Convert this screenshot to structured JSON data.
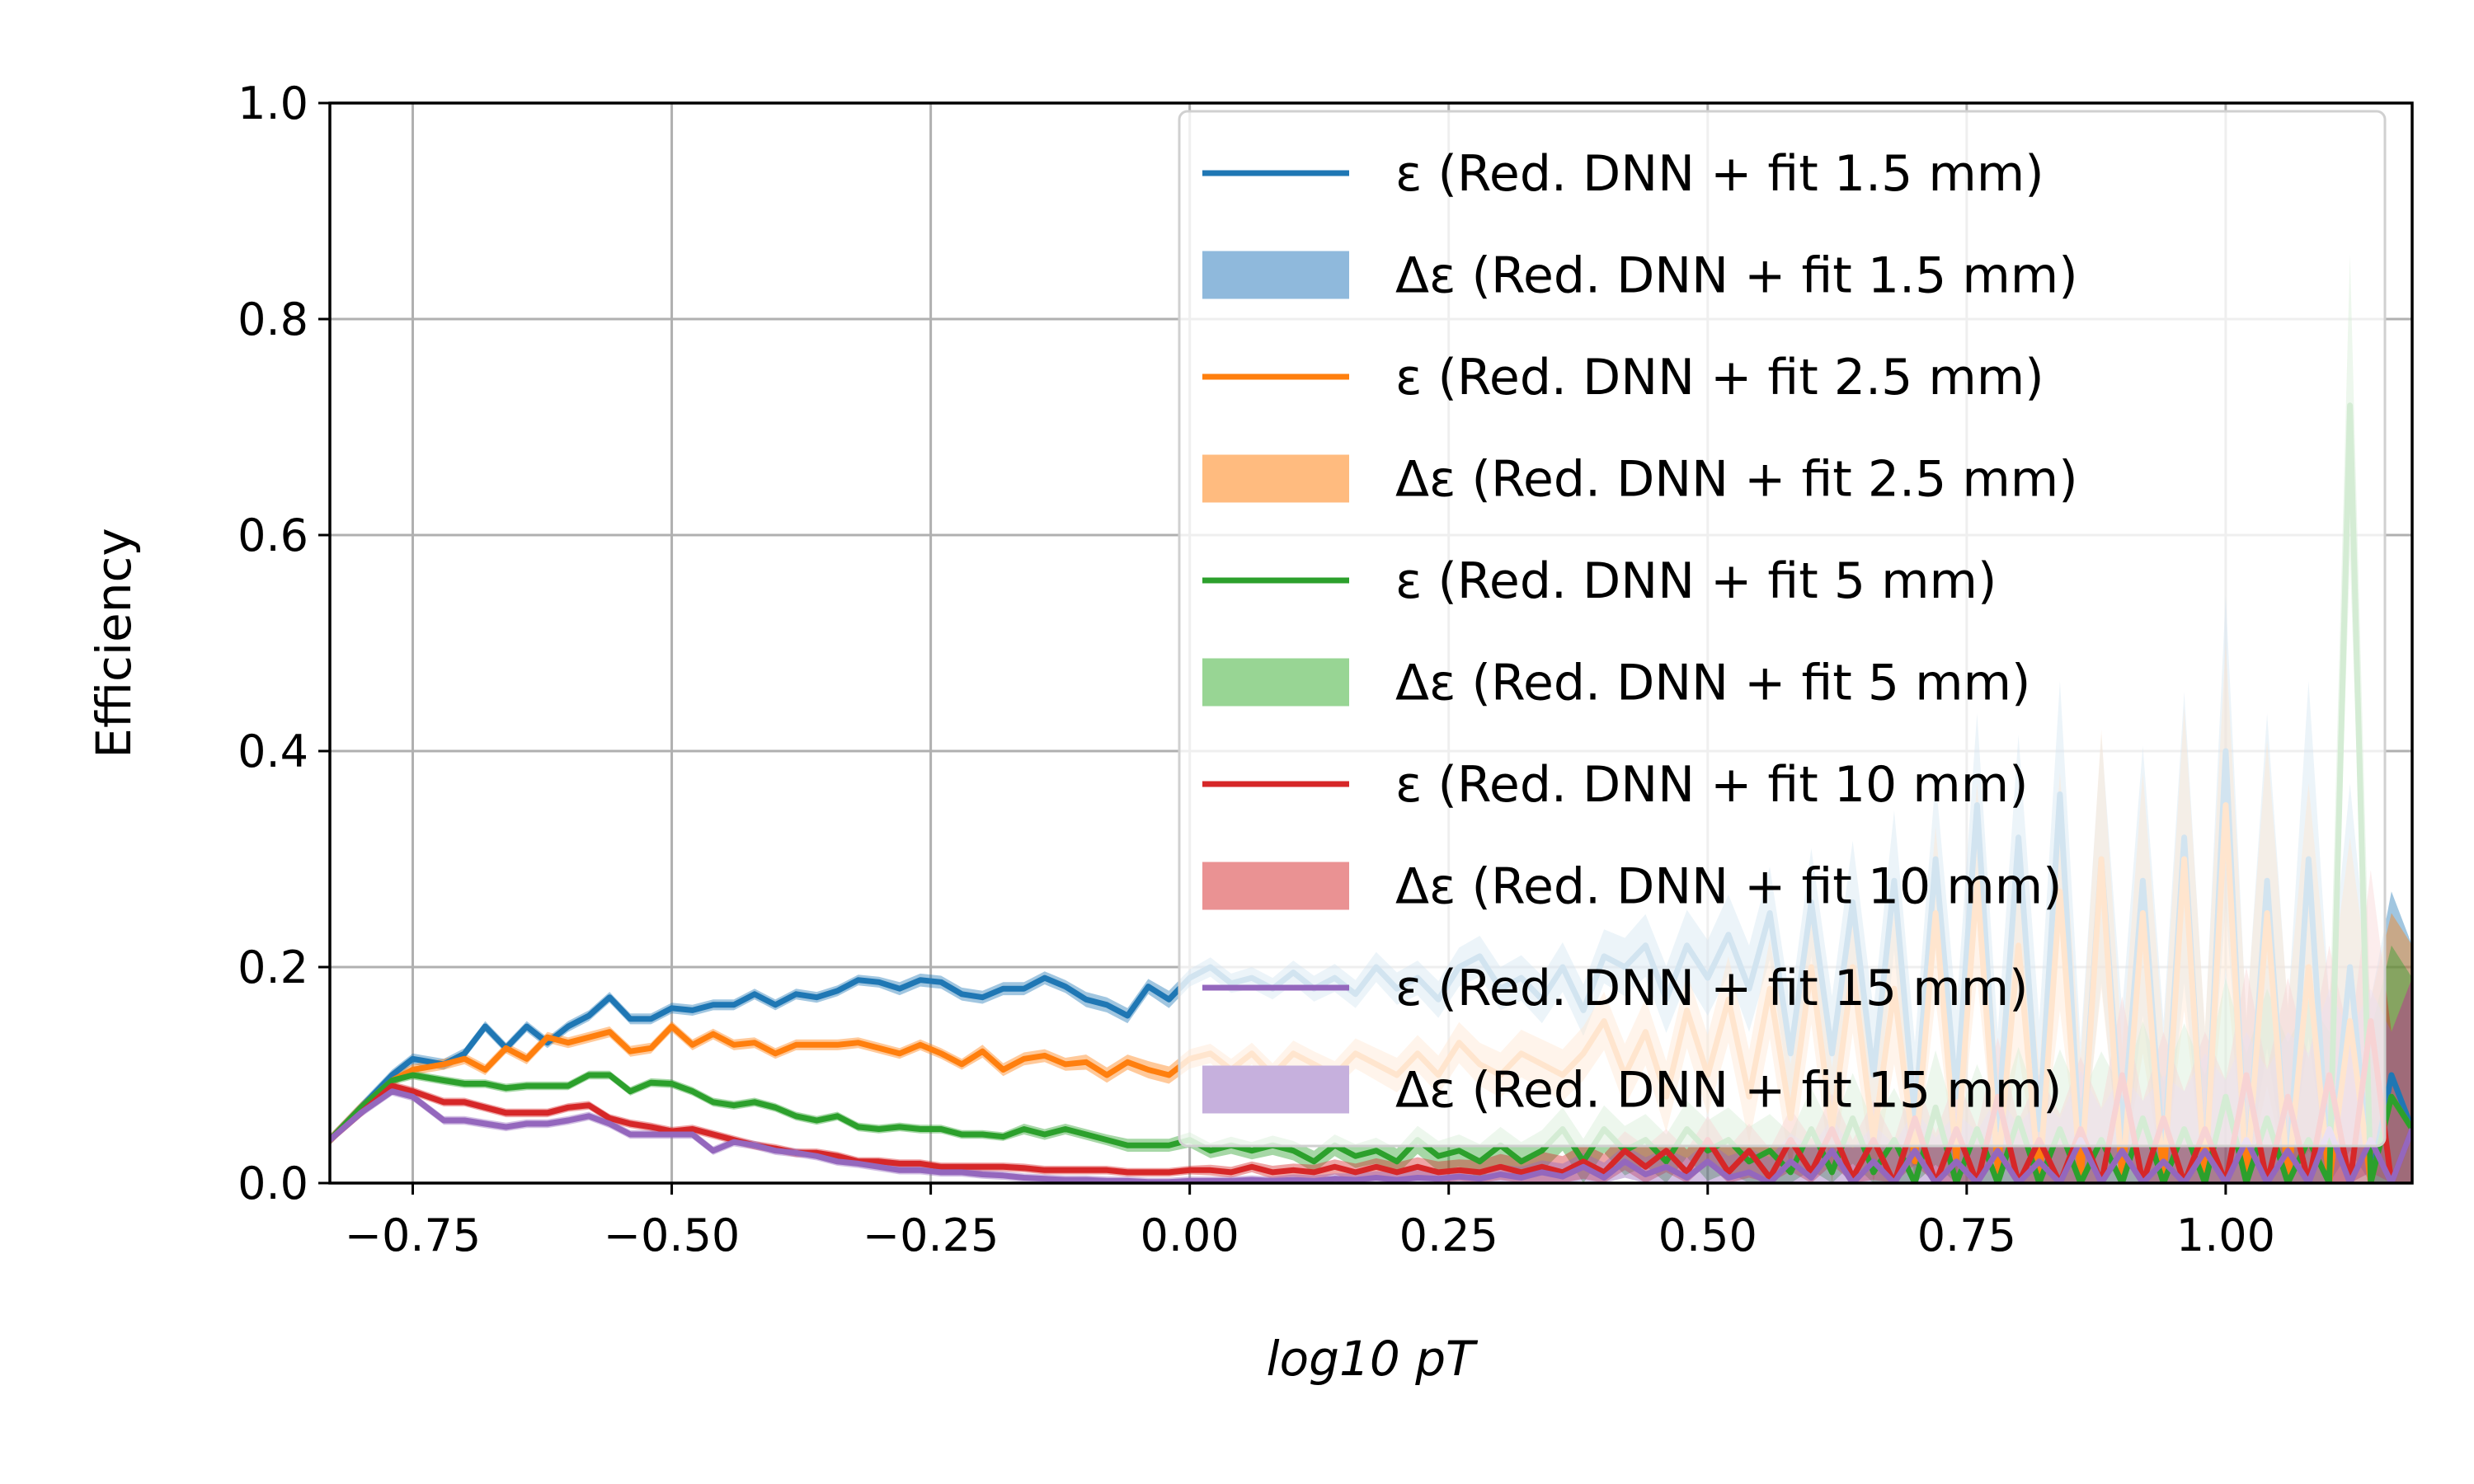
{
  "chart_data": {
    "type": "line",
    "title": "",
    "xlabel": "log10 pT",
    "ylabel": "Efficiency",
    "xlim": [
      -0.83,
      1.18
    ],
    "ylim": [
      0.0,
      1.0
    ],
    "x_ticks": [
      "−0.75",
      "−0.50",
      "−0.25",
      "0.00",
      "0.25",
      "0.50",
      "0.75",
      "1.00"
    ],
    "x_tick_values": [
      -0.75,
      -0.5,
      -0.25,
      0.0,
      0.25,
      0.5,
      0.75,
      1.0
    ],
    "y_ticks": [
      "0.0",
      "0.2",
      "0.4",
      "0.6",
      "0.8",
      "1.0"
    ],
    "y_tick_values": [
      0.0,
      0.2,
      0.4,
      0.6,
      0.8,
      1.0
    ],
    "grid": true,
    "legend_position": "top-right",
    "x": [
      -0.83,
      -0.8,
      -0.77,
      -0.75,
      -0.72,
      -0.7,
      -0.68,
      -0.66,
      -0.64,
      -0.62,
      -0.6,
      -0.58,
      -0.56,
      -0.54,
      -0.52,
      -0.5,
      -0.48,
      -0.46,
      -0.44,
      -0.42,
      -0.4,
      -0.38,
      -0.36,
      -0.34,
      -0.32,
      -0.3,
      -0.28,
      -0.26,
      -0.24,
      -0.22,
      -0.2,
      -0.18,
      -0.16,
      -0.14,
      -0.12,
      -0.1,
      -0.08,
      -0.06,
      -0.04,
      -0.02,
      0.0,
      0.02,
      0.04,
      0.06,
      0.08,
      0.1,
      0.12,
      0.14,
      0.16,
      0.18,
      0.2,
      0.22,
      0.24,
      0.26,
      0.28,
      0.3,
      0.32,
      0.34,
      0.36,
      0.38,
      0.4,
      0.42,
      0.44,
      0.46,
      0.48,
      0.5,
      0.52,
      0.54,
      0.56,
      0.58,
      0.6,
      0.62,
      0.64,
      0.66,
      0.68,
      0.7,
      0.72,
      0.74,
      0.76,
      0.78,
      0.8,
      0.82,
      0.84,
      0.86,
      0.88,
      0.9,
      0.92,
      0.94,
      0.96,
      0.98,
      1.0,
      1.02,
      1.04,
      1.06,
      1.08,
      1.1,
      1.12,
      1.14,
      1.16,
      1.18
    ],
    "series": [
      {
        "name": "ε (Red. DNN + fit 1.5 mm)",
        "band_name": "Δε (Red. DNN + fit 1.5 mm)",
        "color": "#1f77b4",
        "band_color": "#8fb9dc",
        "values": [
          0.04,
          0.07,
          0.1,
          0.115,
          0.11,
          0.12,
          0.145,
          0.125,
          0.145,
          0.13,
          0.145,
          0.155,
          0.172,
          0.152,
          0.152,
          0.162,
          0.16,
          0.165,
          0.165,
          0.175,
          0.165,
          0.175,
          0.172,
          0.178,
          0.188,
          0.186,
          0.18,
          0.188,
          0.186,
          0.175,
          0.172,
          0.18,
          0.18,
          0.19,
          0.182,
          0.17,
          0.165,
          0.155,
          0.182,
          0.17,
          0.19,
          0.2,
          0.185,
          0.19,
          0.18,
          0.195,
          0.18,
          0.19,
          0.175,
          0.2,
          0.18,
          0.19,
          0.17,
          0.2,
          0.21,
          0.18,
          0.19,
          0.17,
          0.2,
          0.16,
          0.21,
          0.2,
          0.22,
          0.17,
          0.22,
          0.19,
          0.23,
          0.18,
          0.25,
          0.12,
          0.26,
          0.12,
          0.26,
          0.1,
          0.28,
          0.06,
          0.3,
          0.08,
          0.35,
          0.05,
          0.32,
          0.05,
          0.36,
          0.02,
          0.3,
          0.04,
          0.28,
          0.02,
          0.32,
          0.0,
          0.4,
          0.0,
          0.28,
          0.0,
          0.3,
          0.0,
          0.2,
          0.0,
          0.1,
          0.05
        ],
        "errors": [
          0.005,
          0.005,
          0.005,
          0.005,
          0.005,
          0.005,
          0.005,
          0.005,
          0.005,
          0.005,
          0.005,
          0.005,
          0.005,
          0.005,
          0.005,
          0.005,
          0.005,
          0.005,
          0.005,
          0.005,
          0.005,
          0.005,
          0.005,
          0.005,
          0.005,
          0.005,
          0.006,
          0.006,
          0.006,
          0.006,
          0.006,
          0.006,
          0.006,
          0.006,
          0.006,
          0.007,
          0.007,
          0.007,
          0.007,
          0.008,
          0.008,
          0.009,
          0.009,
          0.01,
          0.01,
          0.011,
          0.012,
          0.013,
          0.013,
          0.014,
          0.015,
          0.016,
          0.017,
          0.018,
          0.019,
          0.02,
          0.021,
          0.022,
          0.023,
          0.024,
          0.025,
          0.027,
          0.029,
          0.031,
          0.033,
          0.035,
          0.037,
          0.04,
          0.043,
          0.046,
          0.05,
          0.053,
          0.057,
          0.061,
          0.065,
          0.07,
          0.075,
          0.08,
          0.085,
          0.09,
          0.095,
          0.1,
          0.105,
          0.11,
          0.115,
          0.12,
          0.125,
          0.13,
          0.135,
          0.14,
          0.145,
          0.15,
          0.155,
          0.16,
          0.165,
          0.17,
          0.17,
          0.17,
          0.17,
          0.17
        ]
      },
      {
        "name": "ε (Red. DNN + fit 2.5 mm)",
        "band_name": "Δε (Red. DNN + fit 2.5 mm)",
        "color": "#ff7f0e",
        "band_color": "#ffbb7f",
        "values": [
          0.04,
          0.07,
          0.095,
          0.105,
          0.11,
          0.115,
          0.105,
          0.125,
          0.115,
          0.135,
          0.13,
          0.135,
          0.14,
          0.122,
          0.125,
          0.145,
          0.128,
          0.138,
          0.128,
          0.13,
          0.12,
          0.128,
          0.128,
          0.128,
          0.13,
          0.125,
          0.12,
          0.128,
          0.12,
          0.11,
          0.122,
          0.105,
          0.115,
          0.118,
          0.11,
          0.112,
          0.1,
          0.112,
          0.105,
          0.1,
          0.115,
          0.12,
          0.105,
          0.12,
          0.1,
          0.12,
          0.11,
          0.1,
          0.12,
          0.11,
          0.1,
          0.12,
          0.1,
          0.13,
          0.11,
          0.1,
          0.12,
          0.11,
          0.1,
          0.12,
          0.15,
          0.1,
          0.14,
          0.08,
          0.16,
          0.1,
          0.17,
          0.08,
          0.18,
          0.06,
          0.2,
          0.05,
          0.2,
          0.04,
          0.18,
          0.02,
          0.25,
          0.02,
          0.28,
          0.01,
          0.22,
          0.0,
          0.27,
          0.0,
          0.3,
          0.0,
          0.25,
          0.0,
          0.3,
          0.0,
          0.35,
          0.0,
          0.25,
          0.0,
          0.2,
          0.0,
          0.15,
          0.0,
          0.08,
          0.05
        ],
        "errors": [
          0.005,
          0.005,
          0.005,
          0.005,
          0.005,
          0.005,
          0.005,
          0.005,
          0.005,
          0.005,
          0.005,
          0.005,
          0.005,
          0.005,
          0.005,
          0.005,
          0.005,
          0.005,
          0.005,
          0.005,
          0.005,
          0.005,
          0.005,
          0.005,
          0.005,
          0.005,
          0.005,
          0.005,
          0.005,
          0.005,
          0.006,
          0.006,
          0.006,
          0.006,
          0.006,
          0.007,
          0.007,
          0.007,
          0.008,
          0.008,
          0.009,
          0.009,
          0.01,
          0.01,
          0.011,
          0.012,
          0.012,
          0.013,
          0.014,
          0.015,
          0.016,
          0.017,
          0.018,
          0.019,
          0.02,
          0.021,
          0.022,
          0.023,
          0.024,
          0.025,
          0.027,
          0.029,
          0.031,
          0.033,
          0.035,
          0.037,
          0.04,
          0.043,
          0.046,
          0.05,
          0.053,
          0.057,
          0.061,
          0.065,
          0.07,
          0.075,
          0.08,
          0.085,
          0.09,
          0.095,
          0.1,
          0.105,
          0.11,
          0.115,
          0.12,
          0.125,
          0.13,
          0.135,
          0.14,
          0.145,
          0.15,
          0.155,
          0.16,
          0.165,
          0.17,
          0.17,
          0.17,
          0.17,
          0.17,
          0.17
        ]
      },
      {
        "name": "ε (Red. DNN + fit 5 mm)",
        "band_name": "Δε (Red. DNN + fit 5 mm)",
        "color": "#2ca02c",
        "band_color": "#98d594",
        "values": [
          0.04,
          0.07,
          0.095,
          0.1,
          0.095,
          0.092,
          0.092,
          0.088,
          0.09,
          0.09,
          0.09,
          0.1,
          0.1,
          0.085,
          0.093,
          0.092,
          0.085,
          0.075,
          0.072,
          0.075,
          0.07,
          0.062,
          0.058,
          0.062,
          0.052,
          0.05,
          0.052,
          0.05,
          0.05,
          0.045,
          0.045,
          0.043,
          0.05,
          0.045,
          0.05,
          0.045,
          0.04,
          0.035,
          0.035,
          0.035,
          0.04,
          0.03,
          0.035,
          0.03,
          0.035,
          0.03,
          0.02,
          0.035,
          0.025,
          0.03,
          0.02,
          0.04,
          0.025,
          0.03,
          0.02,
          0.035,
          0.02,
          0.03,
          0.05,
          0.02,
          0.05,
          0.03,
          0.04,
          0.02,
          0.05,
          0.03,
          0.04,
          0.02,
          0.03,
          0.01,
          0.05,
          0.01,
          0.06,
          0.01,
          0.04,
          0.0,
          0.07,
          0.0,
          0.05,
          0.0,
          0.06,
          0.0,
          0.05,
          0.0,
          0.04,
          0.0,
          0.06,
          0.0,
          0.05,
          0.0,
          0.08,
          0.0,
          0.06,
          0.0,
          0.04,
          0.0,
          0.72,
          0.0,
          0.08,
          0.05
        ],
        "errors": [
          0.004,
          0.004,
          0.004,
          0.004,
          0.004,
          0.004,
          0.004,
          0.004,
          0.004,
          0.004,
          0.004,
          0.004,
          0.004,
          0.004,
          0.004,
          0.004,
          0.004,
          0.004,
          0.004,
          0.004,
          0.004,
          0.004,
          0.004,
          0.004,
          0.004,
          0.004,
          0.004,
          0.004,
          0.004,
          0.004,
          0.004,
          0.004,
          0.005,
          0.005,
          0.005,
          0.005,
          0.005,
          0.006,
          0.006,
          0.006,
          0.007,
          0.007,
          0.008,
          0.008,
          0.009,
          0.009,
          0.01,
          0.01,
          0.011,
          0.012,
          0.012,
          0.013,
          0.014,
          0.015,
          0.016,
          0.017,
          0.018,
          0.019,
          0.02,
          0.021,
          0.022,
          0.023,
          0.024,
          0.025,
          0.026,
          0.028,
          0.03,
          0.032,
          0.034,
          0.036,
          0.038,
          0.04,
          0.042,
          0.045,
          0.048,
          0.05,
          0.053,
          0.056,
          0.06,
          0.063,
          0.066,
          0.07,
          0.074,
          0.078,
          0.082,
          0.086,
          0.09,
          0.094,
          0.098,
          0.1,
          0.11,
          0.12,
          0.12,
          0.13,
          0.13,
          0.14,
          0.14,
          0.14,
          0.14,
          0.14
        ]
      },
      {
        "name": "ε (Red. DNN + fit 10 mm)",
        "band_name": "Δε (Red. DNN + fit 10 mm)",
        "color": "#d62728",
        "band_color": "#ea9293",
        "values": [
          0.04,
          0.065,
          0.09,
          0.085,
          0.075,
          0.075,
          0.07,
          0.065,
          0.065,
          0.065,
          0.07,
          0.072,
          0.06,
          0.055,
          0.052,
          0.048,
          0.05,
          0.045,
          0.04,
          0.035,
          0.032,
          0.028,
          0.028,
          0.025,
          0.02,
          0.02,
          0.018,
          0.018,
          0.015,
          0.015,
          0.015,
          0.015,
          0.014,
          0.012,
          0.012,
          0.012,
          0.012,
          0.01,
          0.01,
          0.01,
          0.012,
          0.012,
          0.01,
          0.015,
          0.01,
          0.012,
          0.01,
          0.015,
          0.01,
          0.015,
          0.01,
          0.015,
          0.01,
          0.012,
          0.01,
          0.015,
          0.01,
          0.015,
          0.01,
          0.02,
          0.01,
          0.03,
          0.015,
          0.03,
          0.01,
          0.04,
          0.01,
          0.03,
          0.005,
          0.04,
          0.01,
          0.05,
          0.005,
          0.04,
          0.0,
          0.06,
          0.0,
          0.05,
          0.0,
          0.08,
          0.0,
          0.04,
          0.0,
          0.05,
          0.0,
          0.1,
          0.0,
          0.06,
          0.0,
          0.05,
          0.0,
          0.1,
          0.0,
          0.08,
          0.0,
          0.1,
          0.0,
          0.15,
          0.0,
          0.05
        ],
        "errors": [
          0.004,
          0.004,
          0.004,
          0.004,
          0.004,
          0.004,
          0.004,
          0.004,
          0.004,
          0.004,
          0.004,
          0.004,
          0.004,
          0.004,
          0.004,
          0.004,
          0.004,
          0.004,
          0.004,
          0.004,
          0.004,
          0.004,
          0.004,
          0.004,
          0.004,
          0.004,
          0.004,
          0.004,
          0.004,
          0.004,
          0.004,
          0.004,
          0.004,
          0.004,
          0.004,
          0.004,
          0.004,
          0.004,
          0.004,
          0.004,
          0.004,
          0.005,
          0.005,
          0.005,
          0.006,
          0.006,
          0.007,
          0.007,
          0.008,
          0.008,
          0.009,
          0.009,
          0.01,
          0.01,
          0.011,
          0.012,
          0.013,
          0.014,
          0.015,
          0.016,
          0.017,
          0.018,
          0.019,
          0.02,
          0.021,
          0.022,
          0.023,
          0.025,
          0.027,
          0.029,
          0.031,
          0.033,
          0.035,
          0.037,
          0.04,
          0.043,
          0.046,
          0.049,
          0.052,
          0.055,
          0.058,
          0.061,
          0.064,
          0.067,
          0.07,
          0.073,
          0.076,
          0.08,
          0.085,
          0.09,
          0.095,
          0.1,
          0.105,
          0.11,
          0.115,
          0.12,
          0.13,
          0.14,
          0.14,
          0.14
        ]
      },
      {
        "name": "ε (Red. DNN + fit 15 mm)",
        "band_name": "Δε (Red. DNN + fit 15 mm)",
        "color": "#9467bd",
        "band_color": "#c6b0dd",
        "values": [
          0.04,
          0.065,
          0.085,
          0.08,
          0.058,
          0.058,
          0.055,
          0.052,
          0.055,
          0.055,
          0.058,
          0.062,
          0.055,
          0.045,
          0.045,
          0.045,
          0.045,
          0.03,
          0.038,
          0.035,
          0.03,
          0.028,
          0.025,
          0.02,
          0.018,
          0.015,
          0.012,
          0.012,
          0.01,
          0.01,
          0.008,
          0.007,
          0.005,
          0.004,
          0.003,
          0.003,
          0.002,
          0.002,
          0.001,
          0.001,
          0.002,
          0.002,
          0.002,
          0.003,
          0.002,
          0.003,
          0.002,
          0.004,
          0.003,
          0.005,
          0.003,
          0.005,
          0.004,
          0.006,
          0.004,
          0.008,
          0.005,
          0.01,
          0.006,
          0.015,
          0.005,
          0.02,
          0.008,
          0.015,
          0.005,
          0.02,
          0.005,
          0.01,
          0.0,
          0.02,
          0.005,
          0.03,
          0.0,
          0.02,
          0.0,
          0.03,
          0.0,
          0.02,
          0.0,
          0.03,
          0.0,
          0.02,
          0.0,
          0.04,
          0.0,
          0.03,
          0.0,
          0.02,
          0.0,
          0.03,
          0.0,
          0.04,
          0.0,
          0.03,
          0.0,
          0.05,
          0.0,
          0.04,
          0.0,
          0.05
        ],
        "errors": [
          0.004,
          0.004,
          0.004,
          0.004,
          0.004,
          0.004,
          0.004,
          0.004,
          0.004,
          0.004,
          0.004,
          0.004,
          0.004,
          0.004,
          0.004,
          0.004,
          0.004,
          0.004,
          0.004,
          0.004,
          0.004,
          0.004,
          0.004,
          0.004,
          0.004,
          0.004,
          0.004,
          0.004,
          0.004,
          0.004,
          0.004,
          0.004,
          0.004,
          0.004,
          0.004,
          0.004,
          0.004,
          0.004,
          0.004,
          0.004,
          0.004,
          0.004,
          0.004,
          0.004,
          0.004,
          0.005,
          0.005,
          0.005,
          0.006,
          0.006,
          0.007,
          0.007,
          0.008,
          0.008,
          0.009,
          0.009,
          0.01,
          0.011,
          0.012,
          0.013,
          0.014,
          0.015,
          0.016,
          0.017,
          0.018,
          0.019,
          0.02,
          0.022,
          0.024,
          0.026,
          0.028,
          0.03,
          0.032,
          0.034,
          0.036,
          0.039,
          0.042,
          0.045,
          0.048,
          0.051,
          0.054,
          0.057,
          0.06,
          0.064,
          0.068,
          0.072,
          0.076,
          0.08,
          0.085,
          0.09,
          0.095,
          0.1,
          0.105,
          0.11,
          0.12,
          0.13,
          0.14,
          0.14,
          0.14,
          0.14
        ]
      }
    ]
  }
}
